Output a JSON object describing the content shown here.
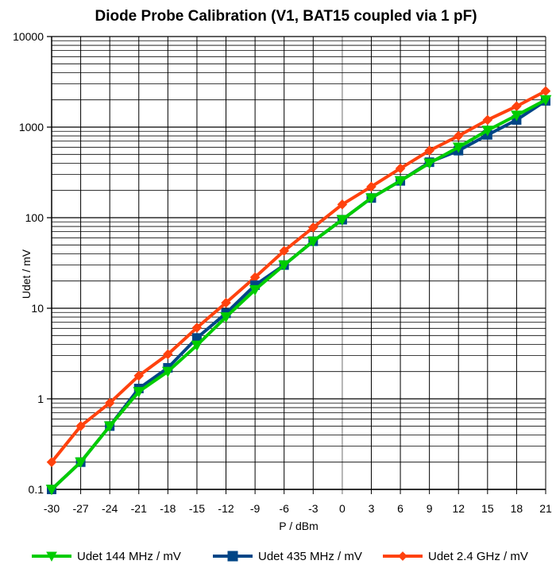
{
  "chart_data": {
    "type": "line",
    "title": "Diode Probe Calibration (V1, BAT15 coupled via 1 pF)",
    "xlabel": "P / dBm",
    "ylabel": "Udet / mV",
    "x": [
      -30,
      -27,
      -24,
      -21,
      -18,
      -15,
      -12,
      -9,
      -6,
      -3,
      0,
      3,
      6,
      9,
      12,
      15,
      18,
      21
    ],
    "x_ticks": [
      "-30",
      "-27",
      "-24",
      "-21",
      "-18",
      "-15",
      "-12",
      "-9",
      "-6",
      "-3",
      "0",
      "3",
      "6",
      "9",
      "12",
      "15",
      "18",
      "21"
    ],
    "xlim": [
      -30,
      21
    ],
    "y_scale": "log",
    "ylim": [
      0.1,
      10000
    ],
    "y_ticks": [
      "0.1",
      "1",
      "10",
      "100",
      "1000",
      "10000"
    ],
    "grid": true,
    "legend_position": "bottom",
    "series": [
      {
        "name": "Udet 144 MHz / mV",
        "color": "#00cc00",
        "marker": "triangle-down",
        "values": [
          0.1,
          0.2,
          0.5,
          1.2,
          2.0,
          3.9,
          8.0,
          16,
          30,
          55,
          95,
          165,
          255,
          400,
          600,
          920,
          1350,
          2000
        ]
      },
      {
        "name": "Udet 435 MHz / mV",
        "color": "#004586",
        "marker": "square",
        "values": [
          0.1,
          0.2,
          0.5,
          1.3,
          2.2,
          4.7,
          8.8,
          18,
          30,
          55,
          95,
          165,
          255,
          410,
          550,
          820,
          1200,
          1950
        ]
      },
      {
        "name": "Udet 2.4 GHz / mV",
        "color": "#ff420e",
        "marker": "diamond",
        "values": [
          0.2,
          0.5,
          0.9,
          1.8,
          3.1,
          6.1,
          11.5,
          22,
          43,
          78,
          140,
          220,
          350,
          550,
          800,
          1200,
          1700,
          2500
        ]
      }
    ]
  }
}
